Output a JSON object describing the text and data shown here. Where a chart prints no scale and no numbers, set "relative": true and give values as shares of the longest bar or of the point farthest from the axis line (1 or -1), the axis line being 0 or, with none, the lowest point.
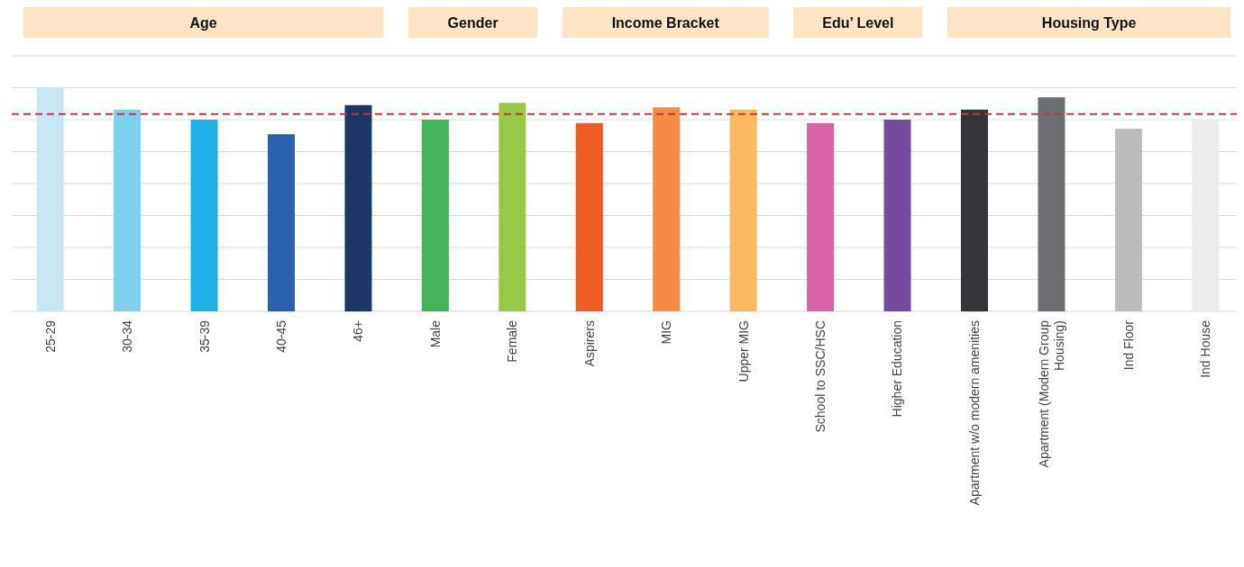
{
  "chart_data": {
    "type": "bar",
    "relative": true,
    "grid": "y",
    "categories": [
      "25-29",
      "30-34",
      "35-39",
      "40-45",
      "46+",
      "Male",
      "Female",
      "Aspirers",
      "MIG",
      "Upper MIG",
      "School to SSC/HSC",
      "Higher Education",
      "Apartment w/o modern amenities",
      "Apartment (Modern Group Housing)",
      "Ind Floor",
      "Ind House"
    ],
    "values": [
      1.0,
      0.9,
      0.855,
      0.79,
      0.92,
      0.855,
      0.93,
      0.84,
      0.91,
      0.9,
      0.84,
      0.855,
      0.9,
      0.955,
      0.815,
      0.855
    ],
    "colors": [
      "#c8e6f3",
      "#7fcff0",
      "#1fb1e6",
      "#2862ae",
      "#1d3666",
      "#42b55c",
      "#97c947",
      "#ef5b24",
      "#f58b45",
      "#fbb95d",
      "#d963a5",
      "#744b9f",
      "#333537",
      "#6c6f72",
      "#bbbcbb",
      "#ececec"
    ],
    "ref_lines": [
      {
        "axis": "y",
        "value": 0.88,
        "color": "#c0393b",
        "line_style": "dashed"
      }
    ],
    "annotations": [
      "Age",
      "Gender",
      "Income Bracket",
      "Edu’ Level",
      "Housing Type"
    ]
  }
}
